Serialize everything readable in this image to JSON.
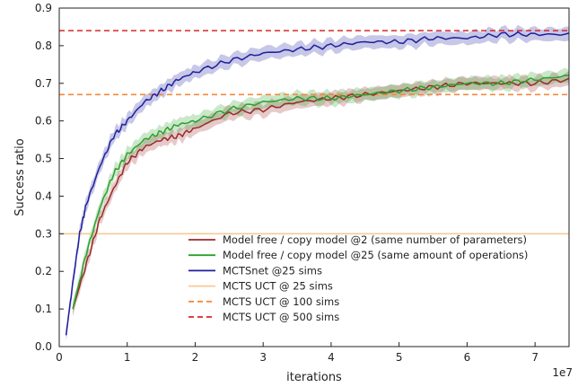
{
  "chart_data": {
    "type": "line",
    "title": "",
    "xlabel": "iterations",
    "ylabel": "Success ratio",
    "x_multiplier_label": "1e7",
    "xlim": [
      0,
      7.5
    ],
    "ylim": [
      0.0,
      0.9
    ],
    "x_ticks": [
      0,
      1,
      2,
      3,
      4,
      5,
      6,
      7
    ],
    "x_tick_labels": [
      "0",
      "1",
      "2",
      "3",
      "4",
      "5",
      "6",
      "7"
    ],
    "y_ticks": [
      0.0,
      0.1,
      0.2,
      0.3,
      0.4,
      0.5,
      0.6,
      0.7,
      0.8,
      0.9
    ],
    "y_tick_labels": [
      "0.0",
      "0.1",
      "0.2",
      "0.3",
      "0.4",
      "0.5",
      "0.6",
      "0.7",
      "0.8",
      "0.9"
    ],
    "grid": false,
    "legend_position": "lower-right",
    "series": [
      {
        "name": "Model free / copy model @2 (same number of parameters)",
        "color": "#9b2a2a",
        "style": "solid",
        "x": [
          0.2,
          0.4,
          0.6,
          0.8,
          1.0,
          1.25,
          1.5,
          1.75,
          2.0,
          2.5,
          3.0,
          3.5,
          4.0,
          4.5,
          5.0,
          5.5,
          6.0,
          6.5,
          7.0,
          7.5
        ],
        "y": [
          0.1,
          0.22,
          0.34,
          0.42,
          0.49,
          0.53,
          0.55,
          0.56,
          0.58,
          0.62,
          0.63,
          0.65,
          0.66,
          0.67,
          0.68,
          0.69,
          0.7,
          0.7,
          0.7,
          0.71
        ]
      },
      {
        "name": "Model free / copy model @25 (same amount of operations)",
        "color": "#2ca02c",
        "style": "solid",
        "x": [
          0.2,
          0.4,
          0.6,
          0.8,
          1.0,
          1.25,
          1.5,
          1.75,
          2.0,
          2.5,
          3.0,
          3.5,
          4.0,
          4.5,
          5.0,
          5.5,
          6.0,
          6.5,
          7.0,
          7.5
        ],
        "y": [
          0.1,
          0.25,
          0.37,
          0.46,
          0.51,
          0.55,
          0.57,
          0.59,
          0.6,
          0.63,
          0.65,
          0.66,
          0.66,
          0.67,
          0.68,
          0.69,
          0.7,
          0.7,
          0.71,
          0.72
        ]
      },
      {
        "name": "MCTSnet @25 sims",
        "color": "#1f1f9e",
        "style": "solid",
        "x": [
          0.1,
          0.2,
          0.3,
          0.4,
          0.6,
          0.8,
          1.0,
          1.25,
          1.5,
          1.75,
          2.0,
          2.5,
          3.0,
          3.5,
          4.0,
          4.5,
          5.0,
          5.5,
          6.0,
          6.5,
          7.0,
          7.5
        ],
        "y": [
          0.03,
          0.17,
          0.3,
          0.38,
          0.48,
          0.56,
          0.6,
          0.65,
          0.68,
          0.71,
          0.73,
          0.76,
          0.78,
          0.79,
          0.8,
          0.81,
          0.81,
          0.82,
          0.82,
          0.83,
          0.83,
          0.83
        ]
      },
      {
        "name": "MCTS UCT @ 25 sims",
        "color": "#f8c995",
        "style": "solid",
        "constant": 0.3
      },
      {
        "name": "MCTS UCT @ 100 sims",
        "color": "#f5883a",
        "style": "dashed",
        "constant": 0.67
      },
      {
        "name": "MCTS UCT @ 500 sims",
        "color": "#d62728",
        "style": "dashed",
        "constant": 0.84
      }
    ]
  }
}
